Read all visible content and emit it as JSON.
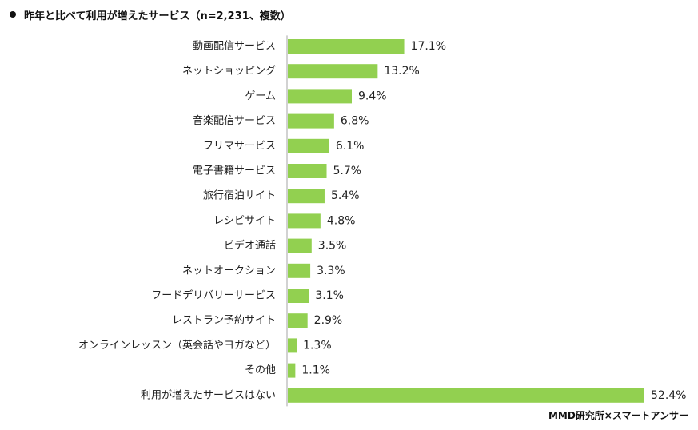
{
  "title": "昨年と比べて利用が増えたサービス（n=2,231、複数）",
  "source": "MMD研究所×スマートアンサー",
  "bar_color": "#92D050",
  "chart_data": {
    "type": "bar",
    "orientation": "horizontal",
    "title": "昨年と比べて利用が増えたサービス（n=2,231、複数）",
    "xlabel": "",
    "ylabel": "",
    "unit": "%",
    "xlim": [
      0,
      55
    ],
    "grid": false,
    "categories": [
      "動画配信サービス",
      "ネットショッピング",
      "ゲーム",
      "音楽配信サービス",
      "フリマサービス",
      "電子書籍サービス",
      "旅行宿泊サイト",
      "レシピサイト",
      "ビデオ通話",
      "ネットオークション",
      "フードデリバリーサービス",
      "レストラン予約サイト",
      "オンラインレッスン（英会話やヨガなど）",
      "その他",
      "利用が増えたサービスはない"
    ],
    "values": [
      17.1,
      13.2,
      9.4,
      6.8,
      6.1,
      5.7,
      5.4,
      4.8,
      3.5,
      3.3,
      3.1,
      2.9,
      1.3,
      1.1,
      52.4
    ],
    "value_labels": [
      "17.1%",
      "13.2%",
      "9.4%",
      "6.8%",
      "6.1%",
      "5.7%",
      "5.4%",
      "4.8%",
      "3.5%",
      "3.3%",
      "3.1%",
      "2.9%",
      "1.3%",
      "1.1%",
      "52.4%"
    ]
  }
}
